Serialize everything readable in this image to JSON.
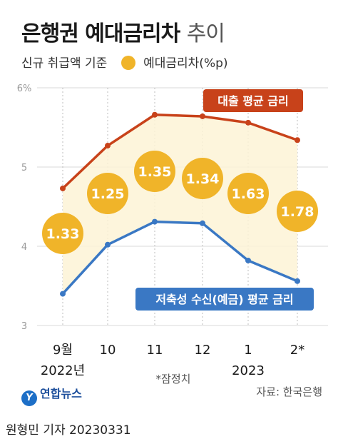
{
  "header": {
    "title_bold": "은행권 예대금리차",
    "title_light": "추이",
    "subtitle": "신규 취급액 기준",
    "legend_label": "예대금리차(%p)"
  },
  "footer": {
    "brand": "연합뉴스",
    "source": "자료: 한국은행",
    "byline": "원형민 기자  20230331"
  },
  "colors": {
    "loan": "#c8421a",
    "deposit": "#3a78c4",
    "spread": "#f0b429"
  },
  "chart_data": {
    "type": "line",
    "x": [
      "9월",
      "10",
      "11",
      "12",
      "1",
      "2*"
    ],
    "x_groups": [
      {
        "label": "2022년",
        "under": "9월"
      },
      {
        "label": "2023",
        "under": "1"
      }
    ],
    "ylim": [
      3,
      6
    ],
    "yticks": [
      "3",
      "4",
      "5",
      "6%"
    ],
    "series": [
      {
        "name": "대출 평균 금리",
        "values": [
          4.73,
          5.27,
          5.66,
          5.64,
          5.56,
          5.34
        ]
      },
      {
        "name": "저축성 수신(예금) 평균 금리",
        "values": [
          3.4,
          4.02,
          4.31,
          4.29,
          3.82,
          3.56
        ]
      }
    ],
    "spread": {
      "name": "예대금리차(%p)",
      "values": [
        "1.33",
        "1.25",
        "1.35",
        "1.34",
        "1.63",
        "1.78"
      ]
    },
    "annotation": "*잠정치"
  }
}
